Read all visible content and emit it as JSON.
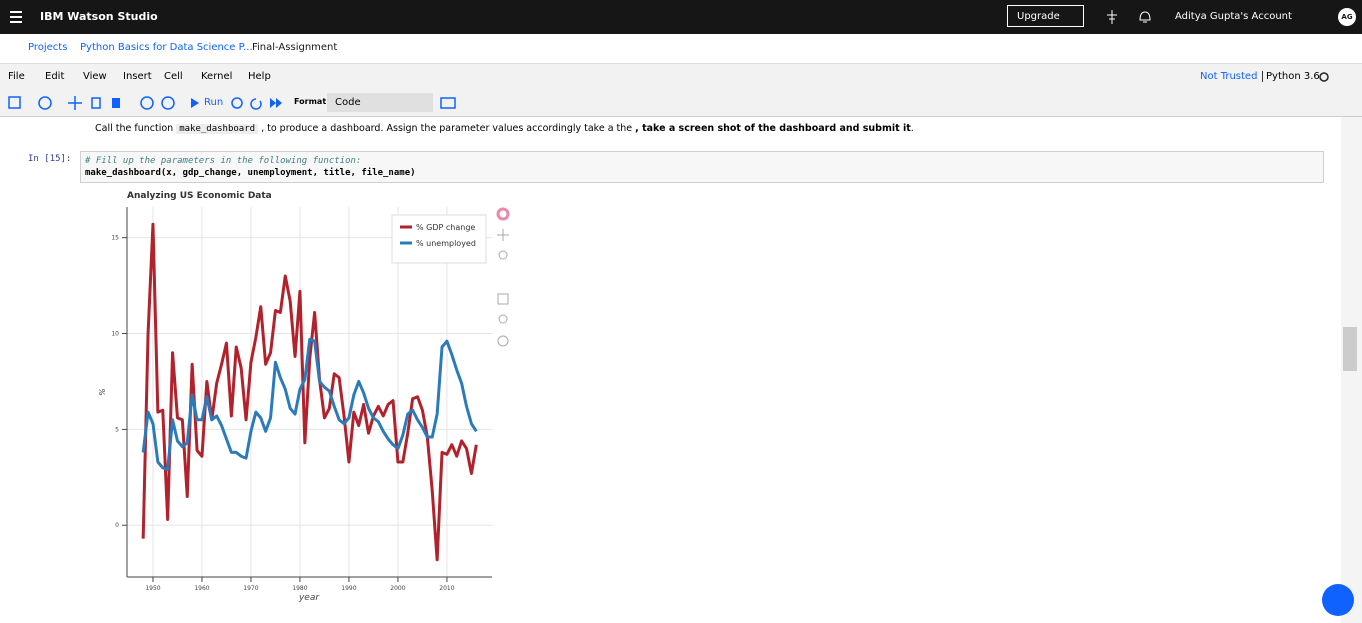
{
  "header": {
    "brand": "IBM Watson Studio",
    "upgrade": "Upgrade",
    "account": "Aditya Gupta's Account",
    "avatar": "AG"
  },
  "breadcrumbs": [
    "Projects",
    "Python Basics for Data Science P...",
    "Final-Assignment"
  ],
  "menu": [
    "File",
    "Edit",
    "View",
    "Insert",
    "Cell",
    "Kernel",
    "Help"
  ],
  "kernel": {
    "trusted": "Not Trusted",
    "name": "Python 3.6"
  },
  "toolbar": {
    "run": "Run",
    "format": "Format",
    "cell_type": "Code"
  },
  "markdown": [
    "Call the function ",
    "make_dashboard",
    " , to produce a dashboard. Assign the parameter values accordingly take a the ",
    ", take a screen shot of the dashboard and submit it",
    "."
  ],
  "cell": {
    "prompt": "In [15]:",
    "code": [
      "# Fill up the parameters in the following function:",
      "make_dashboard(x, gdp_change, unemployment, title, file_name)"
    ]
  },
  "chart_data": {
    "type": "line",
    "title": "Analyzing US Economic Data",
    "xlabel": "year",
    "ylabel": "%",
    "x": [
      1948,
      1949,
      1950,
      1951,
      1952,
      1953,
      1954,
      1955,
      1956,
      1957,
      1958,
      1959,
      1960,
      1961,
      1962,
      1963,
      1964,
      1965,
      1966,
      1967,
      1968,
      1969,
      1970,
      1971,
      1972,
      1973,
      1974,
      1975,
      1976,
      1977,
      1978,
      1979,
      1980,
      1981,
      1982,
      1983,
      1984,
      1985,
      1986,
      1987,
      1988,
      1989,
      1990,
      1991,
      1992,
      1993,
      1994,
      1995,
      1996,
      1997,
      1998,
      1999,
      2000,
      2001,
      2002,
      2003,
      2004,
      2005,
      2006,
      2007,
      2008,
      2009,
      2010,
      2011,
      2012,
      2013,
      2014,
      2015,
      2016
    ],
    "series": [
      {
        "name": "% GDP change",
        "color": "#b2222c",
        "values": [
          -0.7,
          10.0,
          15.7,
          5.9,
          6.0,
          0.3,
          9.0,
          5.6,
          5.5,
          1.5,
          8.4,
          3.9,
          3.6,
          7.5,
          5.5,
          7.4,
          8.4,
          9.5,
          5.7,
          9.3,
          8.2,
          5.5,
          8.5,
          9.8,
          11.4,
          8.4,
          9.0,
          11.2,
          11.1,
          13.0,
          11.7,
          8.8,
          12.2,
          4.3,
          8.7,
          11.1,
          7.6,
          5.6,
          6.1,
          7.9,
          7.7,
          5.7,
          3.3,
          5.9,
          5.2,
          6.3,
          4.8,
          5.7,
          6.2,
          5.7,
          6.3,
          6.5,
          3.3,
          3.3,
          4.8,
          6.6,
          6.7,
          6.0,
          4.6,
          1.8,
          -1.8,
          3.8,
          3.7,
          4.2,
          3.6,
          4.4,
          4.0,
          2.7,
          4.2
        ]
      },
      {
        "name": "% unemployed",
        "color": "#2b7bba",
        "values": [
          3.8,
          5.9,
          5.3,
          3.3,
          3.0,
          2.9,
          5.5,
          4.4,
          4.1,
          4.3,
          6.8,
          5.5,
          5.5,
          6.7,
          5.5,
          5.7,
          5.2,
          4.5,
          3.8,
          3.8,
          3.6,
          3.5,
          4.9,
          5.9,
          5.6,
          4.9,
          5.6,
          8.5,
          7.7,
          7.1,
          6.1,
          5.8,
          7.1,
          7.6,
          9.7,
          9.6,
          7.5,
          7.2,
          7.0,
          6.2,
          5.5,
          5.3,
          5.6,
          6.8,
          7.5,
          6.9,
          6.1,
          5.6,
          5.4,
          4.9,
          4.5,
          4.2,
          4.0,
          4.7,
          5.8,
          6.0,
          5.5,
          5.1,
          4.6,
          4.6,
          5.8,
          9.3,
          9.6,
          8.9,
          8.1,
          7.4,
          6.2,
          5.3,
          4.9
        ]
      }
    ],
    "xlim": [
      1944.7,
      2019.2
    ],
    "ylim": [
      -2.7,
      16.6
    ],
    "xticks": [
      1950,
      1960,
      1970,
      1980,
      1990,
      2000,
      2010
    ],
    "yticks": [
      0,
      5,
      10,
      15
    ],
    "grid": true,
    "legend": "top-right"
  }
}
